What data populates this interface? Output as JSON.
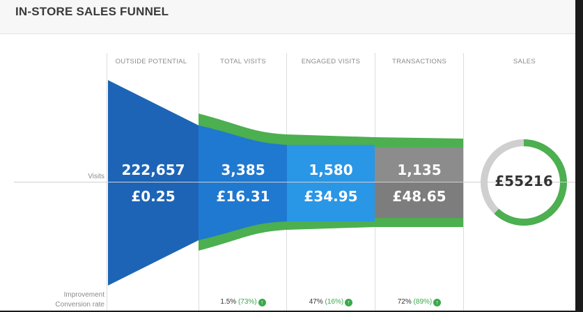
{
  "title": "IN-STORE SALES FUNNEL",
  "colors": {
    "funnel_blue_dark": "#1d64b6",
    "funnel_blue": "#1f79d0",
    "funnel_blue_light": "#2a96e6",
    "improvement_green": "#4caf50",
    "transactions_gray": "#8c8c8c",
    "ring_track": "#cfcfcf"
  },
  "row_labels": {
    "visits": "Visits",
    "improvement": "Improvement",
    "conversion": "Conversion rate"
  },
  "chart_data": {
    "type": "funnel",
    "title": "IN-STORE SALES FUNNEL",
    "stages": [
      {
        "label": "OUTSIDE POTENTIAL",
        "visits": "222,657",
        "value": "£0.25",
        "visits_num": 222657,
        "value_num": 0.25
      },
      {
        "label": "TOTAL VISITS",
        "visits": "3,385",
        "value": "£16.31",
        "visits_num": 3385,
        "value_num": 16.31,
        "improvement": {
          "rate": "1.5%",
          "gain": "(73%)"
        }
      },
      {
        "label": "ENGAGED VISITS",
        "visits": "1,580",
        "value": "£34.95",
        "visits_num": 1580,
        "value_num": 34.95,
        "improvement": {
          "rate": "47%",
          "gain": "(16%)"
        }
      },
      {
        "label": "TRANSACTIONS",
        "visits": "1,135",
        "value": "£48.65",
        "visits_num": 1135,
        "value_num": 48.65,
        "improvement": {
          "rate": "72%",
          "gain": "(89%)"
        }
      }
    ],
    "sales": {
      "label": "SALES",
      "value": "£55216",
      "value_num": 55216,
      "ring_fraction": 0.62
    }
  }
}
